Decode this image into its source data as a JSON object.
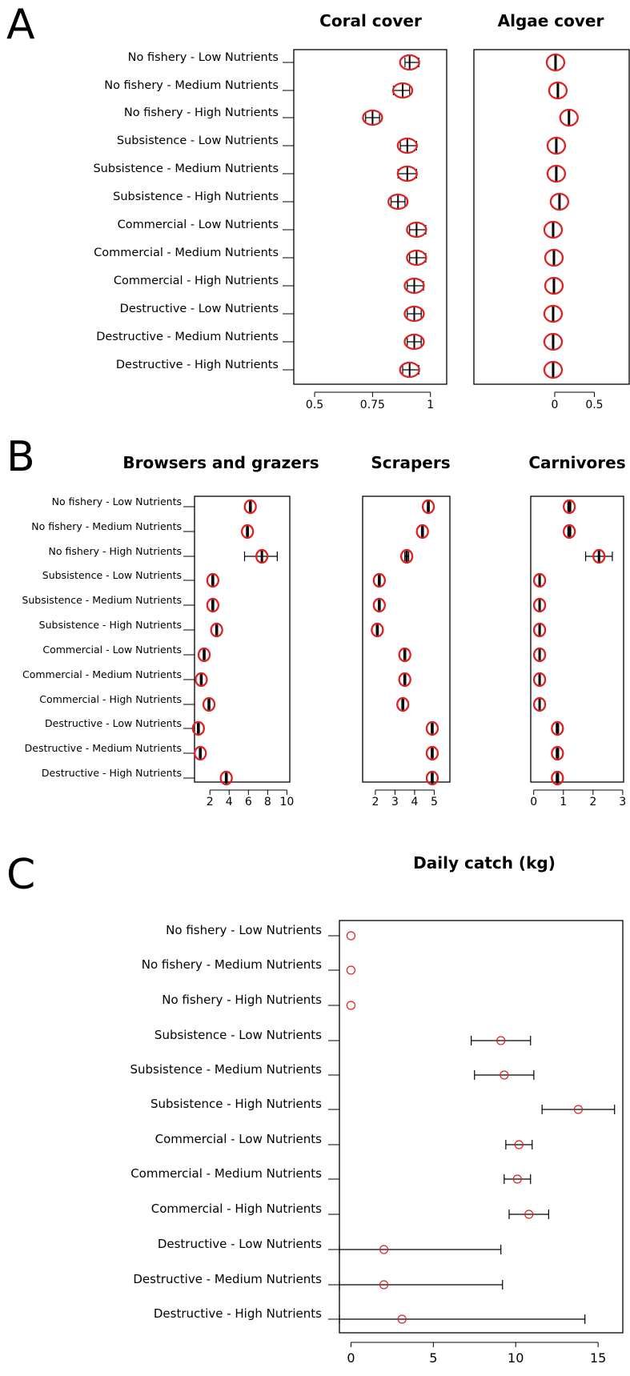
{
  "panels": {
    "a": "A",
    "b": "B",
    "c": "C"
  },
  "chart_data": [
    {
      "panel": "A",
      "title": "Coral cover",
      "type": "scatter",
      "orientation": "horizontal",
      "categories": [
        "No fishery - Low Nutrients",
        "No fishery - Medium Nutrients",
        "No fishery - High Nutrients",
        "Subsistence - Low Nutrients",
        "Subsistence - Medium Nutrients",
        "Subsistence - High Nutrients",
        "Commercial - Low Nutrients",
        "Commercial - Medium Nutrients",
        "Commercial - High Nutrients",
        "Destructive - Low Nutrients",
        "Destructive - Medium Nutrients",
        "Destructive - High Nutrients"
      ],
      "values": [
        0.91,
        0.88,
        0.75,
        0.9,
        0.9,
        0.86,
        0.94,
        0.94,
        0.93,
        0.93,
        0.93,
        0.91
      ],
      "ci_low": [
        0.89,
        0.84,
        0.72,
        0.87,
        0.86,
        0.83,
        0.91,
        0.91,
        0.9,
        0.9,
        0.9,
        0.88
      ],
      "ci_high": [
        0.95,
        0.91,
        0.78,
        0.94,
        0.94,
        0.89,
        0.98,
        0.98,
        0.97,
        0.96,
        0.96,
        0.95
      ],
      "xlim": [
        0.41,
        1.07
      ],
      "xticks": [
        "0.5",
        "0.75",
        "1"
      ],
      "xtick_values": [
        0.5,
        0.75,
        1
      ]
    },
    {
      "panel": "A",
      "title": "Algae cover",
      "type": "scatter",
      "orientation": "horizontal",
      "values": [
        0.01,
        0.04,
        0.18,
        0.02,
        0.02,
        0.06,
        -0.02,
        -0.01,
        -0.01,
        -0.02,
        -0.02,
        -0.02
      ],
      "ci_low": [
        0.01,
        0.04,
        0.18,
        0.02,
        0.02,
        0.06,
        -0.02,
        -0.01,
        -0.01,
        -0.02,
        -0.02,
        -0.02
      ],
      "ci_high": [
        0.01,
        0.04,
        0.18,
        0.02,
        0.02,
        0.06,
        -0.02,
        -0.01,
        -0.01,
        -0.02,
        -0.02,
        -0.02
      ],
      "xlim": [
        -1.02,
        0.94
      ],
      "xticks": [
        "0",
        "0.5"
      ],
      "xtick_values": [
        0,
        0.5
      ]
    },
    {
      "panel": "B",
      "title": "Browsers and grazers",
      "type": "scatter",
      "orientation": "horizontal",
      "values": [
        6.2,
        5.9,
        7.4,
        2.3,
        2.3,
        2.7,
        1.4,
        1.1,
        1.9,
        0.8,
        1.0,
        3.7
      ],
      "ci_low": [
        6.1,
        5.8,
        5.6,
        2.2,
        2.2,
        2.6,
        1.3,
        1.0,
        1.8,
        0.7,
        0.9,
        3.6
      ],
      "ci_high": [
        6.3,
        6.0,
        9.0,
        2.4,
        2.4,
        2.8,
        1.5,
        1.2,
        2.0,
        0.9,
        1.1,
        3.8
      ],
      "xlim": [
        0.4,
        10.3
      ],
      "xticks": [
        "2",
        "4",
        "6",
        "8",
        "10"
      ],
      "xtick_values": [
        2,
        4,
        6,
        8,
        10
      ]
    },
    {
      "panel": "B",
      "title": "Scrapers",
      "type": "scatter",
      "orientation": "horizontal",
      "values": [
        4.7,
        4.4,
        3.6,
        2.2,
        2.2,
        2.1,
        3.5,
        3.5,
        3.4,
        4.9,
        4.9,
        4.9
      ],
      "ci_low": [
        4.65,
        4.35,
        3.5,
        2.15,
        2.15,
        2.05,
        3.45,
        3.45,
        3.35,
        4.85,
        4.85,
        4.85
      ],
      "ci_high": [
        4.75,
        4.45,
        3.7,
        2.25,
        2.25,
        2.15,
        3.55,
        3.55,
        3.45,
        4.95,
        4.95,
        4.95
      ],
      "xlim": [
        1.35,
        5.8
      ],
      "xticks": [
        "2",
        "3",
        "4",
        "5"
      ],
      "xtick_values": [
        2,
        3,
        4,
        5
      ]
    },
    {
      "panel": "B",
      "title": "Carnivores",
      "type": "scatter",
      "orientation": "horizontal",
      "values": [
        1.2,
        1.2,
        2.2,
        0.2,
        0.2,
        0.2,
        0.2,
        0.2,
        0.2,
        0.8,
        0.8,
        0.8
      ],
      "ci_low": [
        1.15,
        1.15,
        1.75,
        0.18,
        0.18,
        0.18,
        0.18,
        0.18,
        0.18,
        0.76,
        0.76,
        0.76
      ],
      "ci_high": [
        1.25,
        1.25,
        2.65,
        0.22,
        0.22,
        0.22,
        0.22,
        0.22,
        0.22,
        0.84,
        0.84,
        0.84
      ],
      "xlim": [
        -0.1,
        3.03
      ],
      "xticks": [
        "0",
        "1",
        "2",
        "3"
      ],
      "xtick_values": [
        0,
        1,
        2,
        3
      ]
    },
    {
      "panel": "C",
      "title": "Daily catch (kg)",
      "type": "scatter",
      "orientation": "horizontal",
      "categories": [
        "No fishery - Low Nutrients",
        "No fishery - Medium Nutrients",
        "No fishery - High Nutrients",
        "Subsistence - Low Nutrients",
        "Subsistence - Medium Nutrients",
        "Subsistence - High Nutrients",
        "Commercial - Low Nutrients",
        "Commercial - Medium Nutrients",
        "Commercial - High Nutrients",
        "Destructive - Low Nutrients",
        "Destructive - Medium Nutrients",
        "Destructive - High Nutrients"
      ],
      "values": [
        0,
        0,
        0,
        9.1,
        9.3,
        13.8,
        10.2,
        10.1,
        10.8,
        2.0,
        2.0,
        3.1
      ],
      "ci_low": [
        0,
        0,
        0,
        7.3,
        7.5,
        11.6,
        9.4,
        9.3,
        9.6,
        -0.7,
        -0.7,
        -0.7
      ],
      "ci_high": [
        0,
        0,
        0,
        10.9,
        11.1,
        16.0,
        11.0,
        10.9,
        12.0,
        9.1,
        9.2,
        14.2
      ],
      "xlim": [
        -0.7,
        16.5
      ],
      "xticks": [
        "0",
        "5",
        "10",
        "15"
      ],
      "xtick_values": [
        0,
        5,
        10,
        15
      ]
    }
  ]
}
